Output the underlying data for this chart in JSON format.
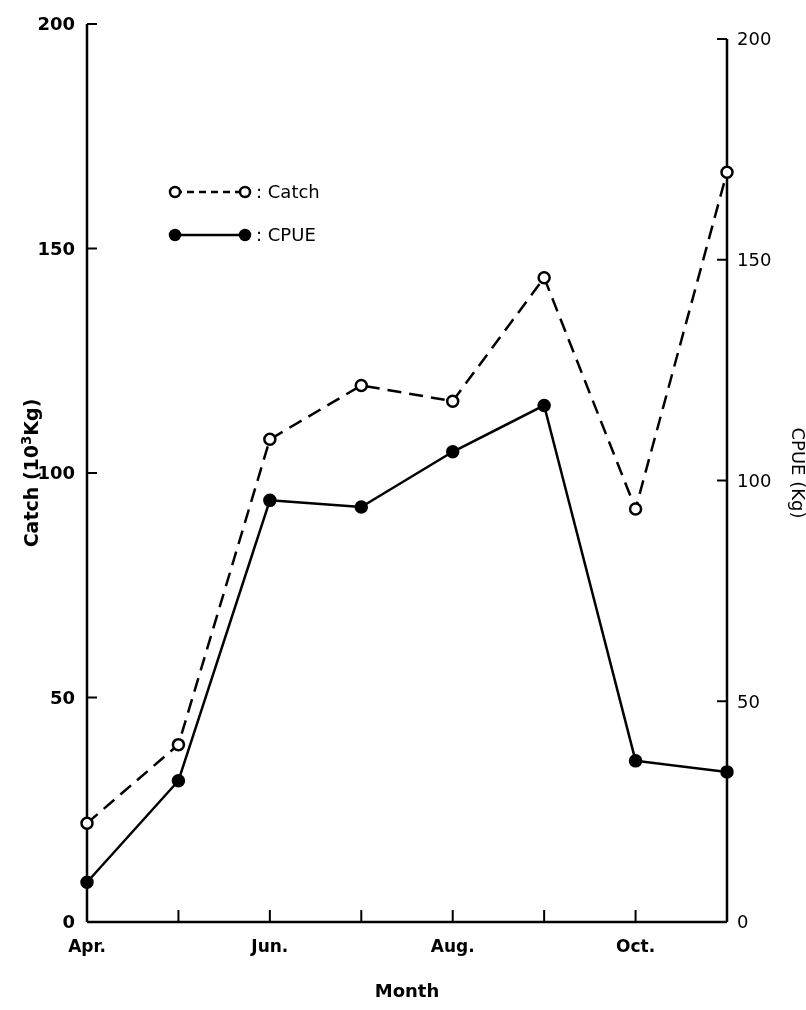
{
  "chart_data": {
    "type": "line",
    "xlabel": "Month",
    "ylabel": "Catch (10$^{3}$Kg)",
    "y2label": "CPUE (Kg)",
    "categories": [
      "Apr.",
      null,
      "Jun.",
      null,
      "Aug.",
      null,
      "Oct.",
      null
    ],
    "series": [
      {
        "name": ": Catch",
        "color": "#000000",
        "values": [
          22,
          39.5,
          107.5,
          119.5,
          116,
          143.5,
          92,
          167
        ],
        "line_style": "dashed",
        "marker": "circle"
      },
      {
        "name": ": CPUE",
        "color": "#000000",
        "values": [
          9,
          32,
          95.5,
          94,
          106.5,
          117,
          36.5,
          34
        ],
        "axis": "y2",
        "line_style": "solid",
        "marker": "circle"
      }
    ],
    "ylim": [
      0,
      200
    ],
    "yticks": [
      0,
      50,
      100,
      150,
      200
    ],
    "y2lim": [
      0,
      200
    ],
    "y2ticks": [
      0,
      50,
      100,
      150,
      200
    ],
    "grid": false,
    "legend": "top left"
  }
}
